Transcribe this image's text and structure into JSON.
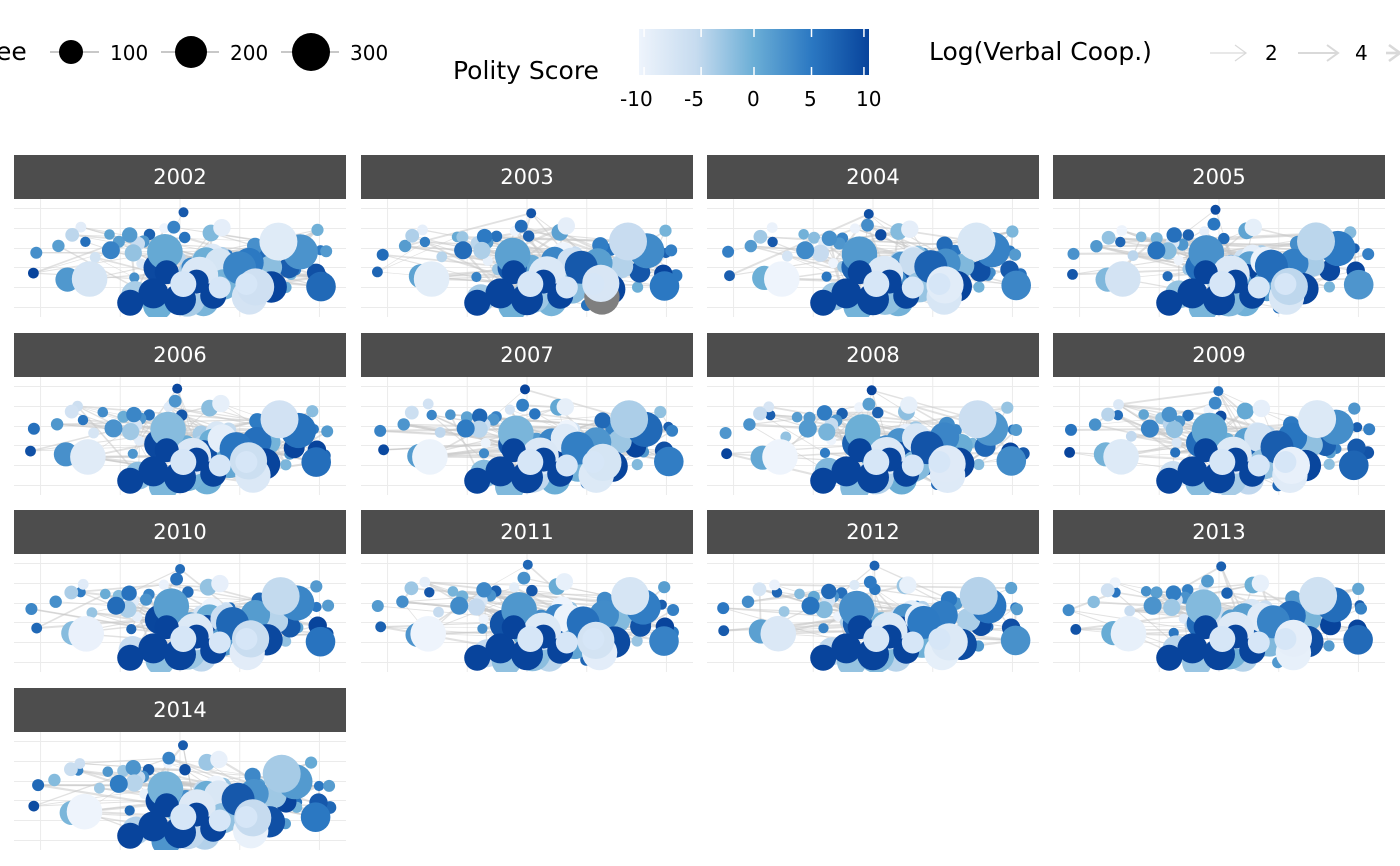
{
  "chart_data": {
    "type": "network",
    "facet_by": "year",
    "facets": [
      "2002",
      "2003",
      "2004",
      "2005",
      "2006",
      "2007",
      "2008",
      "2009",
      "2010",
      "2011",
      "2012",
      "2013",
      "2014"
    ],
    "legends": {
      "node_size": {
        "title_visible": "ee",
        "breaks": [
          "100",
          "200",
          "300"
        ]
      },
      "node_color": {
        "title": "Polity Score",
        "breaks": [
          "-10",
          "-5",
          "0",
          "5",
          "10"
        ],
        "range": [
          -10,
          10
        ],
        "low_color": "#eef4fc",
        "high_color": "#08449c"
      },
      "edge_width": {
        "title": "Log(Verbal Coop.)",
        "breaks": [
          "2",
          "4"
        ]
      }
    },
    "missing_color": "#7f7f7f",
    "edge_color": "#c8c8c8",
    "strip_color": "#4d4d4d",
    "grid": true
  }
}
